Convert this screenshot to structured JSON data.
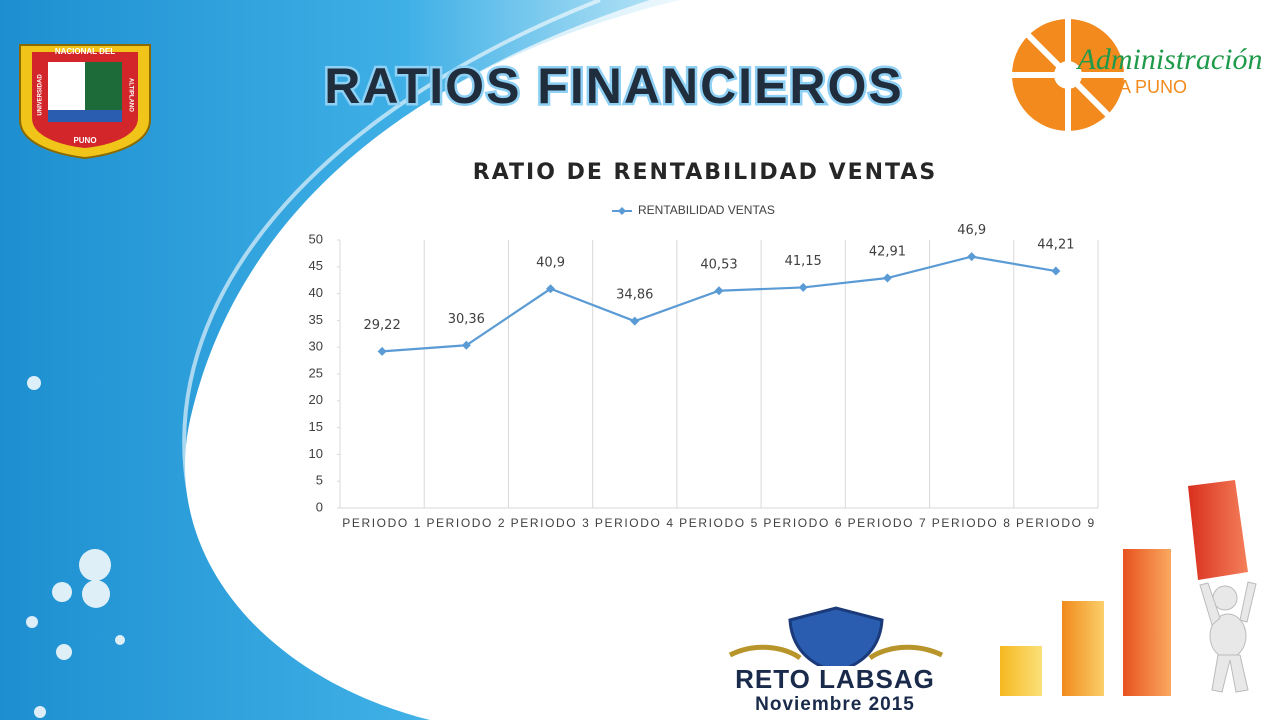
{
  "slide": {
    "title": "RATIOS FINANCIEROS",
    "logo_left": {
      "top": "NACIONAL DEL",
      "left": "UNIVERSIDAD",
      "right": "ALTIPLANO",
      "bottom": "PUNO"
    },
    "logo_right": {
      "title": "Administración",
      "subtitle": "UNA PUNO"
    },
    "badge": {
      "title": "RETO LABSAG",
      "date": "Noviembre 2015"
    }
  },
  "chart_data": {
    "type": "line",
    "title": "RATIO DE RENTABILIDAD VENTAS",
    "categories": [
      "PERIODO 1",
      "PERIODO 2",
      "PERIODO 3",
      "PERIODO 4",
      "PERIODO 5",
      "PERIODO 6",
      "PERIODO 7",
      "PERIODO 8",
      "PERIODO 9"
    ],
    "series": [
      {
        "name": "RENTABILIDAD VENTAS",
        "color": "#5b9bd5",
        "values": [
          29.22,
          30.36,
          40.9,
          34.86,
          40.53,
          41.15,
          42.91,
          46.9,
          44.21
        ],
        "value_labels": [
          "29,22",
          "30,36",
          "40,9",
          "34,86",
          "40,53",
          "41,15",
          "42,91",
          "46,9",
          "44,21"
        ]
      }
    ],
    "ylim": [
      0,
      50
    ],
    "yticks": [
      0,
      5,
      10,
      15,
      20,
      25,
      30,
      35,
      40,
      45,
      50
    ],
    "grid": true,
    "legend": "top"
  }
}
